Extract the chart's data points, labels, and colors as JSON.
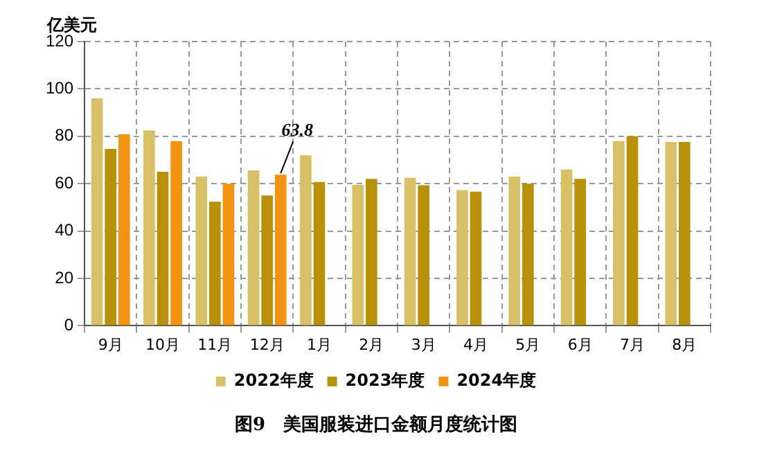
{
  "chart_data": {
    "type": "bar",
    "title": "图9　美国服装进口金额月度统计图",
    "ylabel": "亿美元",
    "categories": [
      "9月",
      "10月",
      "11月",
      "12月",
      "1月",
      "2月",
      "3月",
      "4月",
      "5月",
      "6月",
      "7月",
      "8月"
    ],
    "series": [
      {
        "name": "2022年度",
        "color": "#d8c066",
        "values": [
          96,
          82.5,
          63,
          65.6,
          72,
          59.5,
          62.5,
          57.3,
          63,
          66,
          78,
          77.6
        ]
      },
      {
        "name": "2023年度",
        "color": "#b8900a",
        "values": [
          74.7,
          65,
          52.4,
          55,
          60.7,
          62,
          59.3,
          56.6,
          60,
          62,
          80,
          77.6
        ]
      },
      {
        "name": "2024年度",
        "color": "#f29312",
        "values": [
          80.8,
          78,
          60,
          63.8,
          null,
          null,
          null,
          null,
          null,
          null,
          null,
          null
        ],
        "value_labels": [
          null,
          null,
          null,
          "63.8",
          null,
          null,
          null,
          null,
          null,
          null,
          null,
          null
        ]
      }
    ],
    "ylim": [
      0,
      120
    ],
    "yticks": [
      0,
      20,
      40,
      60,
      80,
      100,
      120
    ],
    "grid": true,
    "legend": "bottom"
  }
}
